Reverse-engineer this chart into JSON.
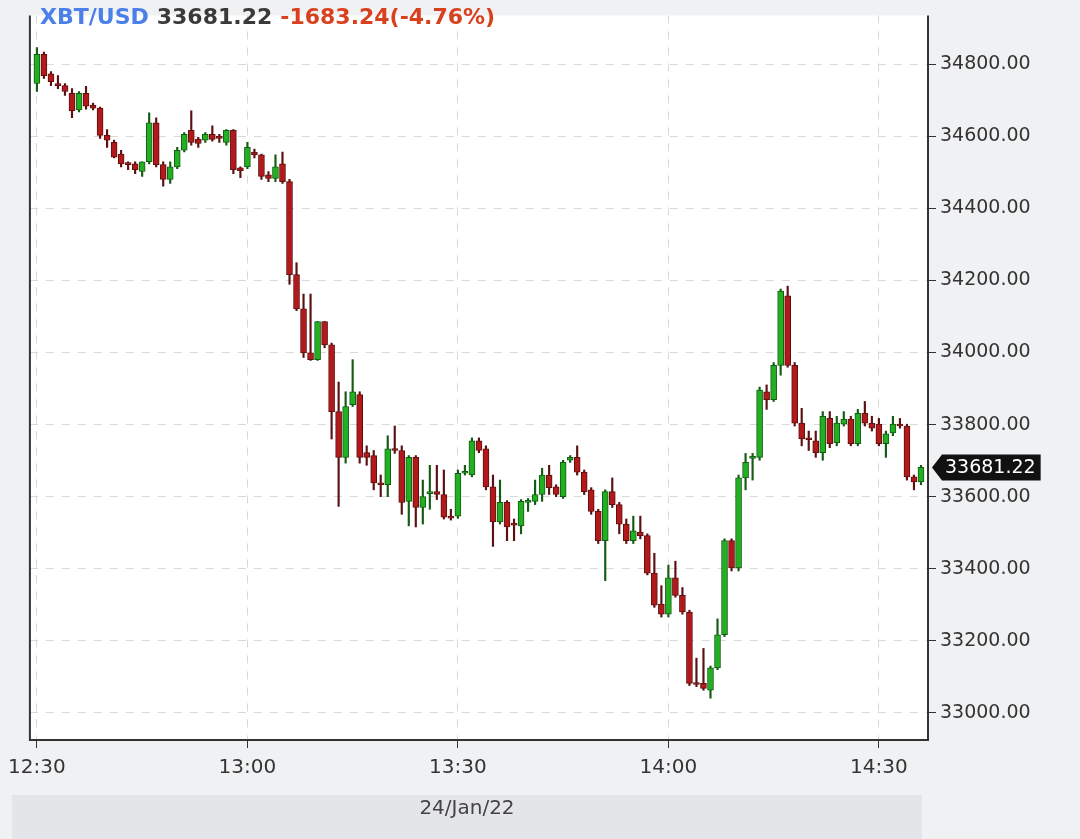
{
  "chart_data": {
    "type": "candlestick",
    "title": "XBT/USD",
    "subtitle": "33681.22",
    "annotations": [
      "-1683.24(-4.76%)",
      "33681.22"
    ],
    "xlabel": "24/Jan/22",
    "xlim": [
      "--01-24T12:29",
      "--01-24T14:37"
    ],
    "xticks": [
      {
        "value": "--01-24T12:30",
        "label": "12:30"
      },
      {
        "value": "--01-24T13:00",
        "label": "13:00"
      },
      {
        "value": "--01-24T13:30",
        "label": "13:30"
      },
      {
        "value": "--01-24T14:00",
        "label": "14:00"
      },
      {
        "value": "--01-24T14:30",
        "label": "14:30"
      }
    ],
    "ylim": [
      32925,
      34935
    ],
    "yticks": [
      {
        "value": 33000,
        "label": "33000.00"
      },
      {
        "value": 33200,
        "label": "33200.00"
      },
      {
        "value": 33400,
        "label": "33400.00"
      },
      {
        "value": 33600,
        "label": "33600.00"
      },
      {
        "value": 33800,
        "label": "33800.00"
      },
      {
        "value": 34000,
        "label": "34000.00"
      },
      {
        "value": 34200,
        "label": "34200.00"
      },
      {
        "value": 34400,
        "label": "34400.00"
      },
      {
        "value": 34600,
        "label": "34600.00"
      },
      {
        "value": 34800,
        "label": "34800.00"
      }
    ],
    "grid": true,
    "x": [
      "--01-24T12:30",
      "--01-24T12:31",
      "--01-24T12:32",
      "--01-24T12:33",
      "--01-24T12:34",
      "--01-24T12:35",
      "--01-24T12:36",
      "--01-24T12:37",
      "--01-24T12:38",
      "--01-24T12:39",
      "--01-24T12:40",
      "--01-24T12:41",
      "--01-24T12:42",
      "--01-24T12:43",
      "--01-24T12:44",
      "--01-24T12:45",
      "--01-24T12:46",
      "--01-24T12:47",
      "--01-24T12:48",
      "--01-24T12:49",
      "--01-24T12:50",
      "--01-24T12:51",
      "--01-24T12:52",
      "--01-24T12:53",
      "--01-24T12:54",
      "--01-24T12:55",
      "--01-24T12:56",
      "--01-24T12:57",
      "--01-24T12:58",
      "--01-24T12:59",
      "--01-24T13:00",
      "--01-24T13:01",
      "--01-24T13:02",
      "--01-24T13:03",
      "--01-24T13:04",
      "--01-24T13:05",
      "--01-24T13:06",
      "--01-24T13:07",
      "--01-24T13:08",
      "--01-24T13:09",
      "--01-24T13:10",
      "--01-24T13:11",
      "--01-24T13:12",
      "--01-24T13:13",
      "--01-24T13:14",
      "--01-24T13:15",
      "--01-24T13:16",
      "--01-24T13:17",
      "--01-24T13:18",
      "--01-24T13:19",
      "--01-24T13:20",
      "--01-24T13:21",
      "--01-24T13:22",
      "--01-24T13:23",
      "--01-24T13:24",
      "--01-24T13:25",
      "--01-24T13:26",
      "--01-24T13:27",
      "--01-24T13:28",
      "--01-24T13:29",
      "--01-24T13:30",
      "--01-24T13:31",
      "--01-24T13:32",
      "--01-24T13:33",
      "--01-24T13:34",
      "--01-24T13:35",
      "--01-24T13:36",
      "--01-24T13:37",
      "--01-24T13:38",
      "--01-24T13:39",
      "--01-24T13:40",
      "--01-24T13:41",
      "--01-24T13:42",
      "--01-24T13:43",
      "--01-24T13:44",
      "--01-24T13:45",
      "--01-24T13:46",
      "--01-24T13:47",
      "--01-24T13:48",
      "--01-24T13:49",
      "--01-24T13:50",
      "--01-24T13:51",
      "--01-24T13:52",
      "--01-24T13:53",
      "--01-24T13:54",
      "--01-24T13:55",
      "--01-24T13:56",
      "--01-24T13:57",
      "--01-24T13:58",
      "--01-24T13:59",
      "--01-24T14:00",
      "--01-24T14:01",
      "--01-24T14:02",
      "--01-24T14:03",
      "--01-24T14:04",
      "--01-24T14:05",
      "--01-24T14:06",
      "--01-24T14:07",
      "--01-24T14:08",
      "--01-24T14:09",
      "--01-24T14:10",
      "--01-24T14:11",
      "--01-24T14:12",
      "--01-24T14:13",
      "--01-24T14:14",
      "--01-24T14:15",
      "--01-24T14:16",
      "--01-24T14:17",
      "--01-24T14:18",
      "--01-24T14:19",
      "--01-24T14:20",
      "--01-24T14:21",
      "--01-24T14:22",
      "--01-24T14:23",
      "--01-24T14:24",
      "--01-24T14:25",
      "--01-24T14:26",
      "--01-24T14:27",
      "--01-24T14:28",
      "--01-24T14:29",
      "--01-24T14:30",
      "--01-24T14:31",
      "--01-24T14:32",
      "--01-24T14:33",
      "--01-24T14:34",
      "--01-24T14:35",
      "--01-24T14:36"
    ],
    "ohlc": [
      [
        34746,
        34846,
        34724,
        34827
      ],
      [
        34827,
        34833,
        34760,
        34768
      ],
      [
        34773,
        34779,
        34740,
        34751
      ],
      [
        34746,
        34768,
        34732,
        34740
      ],
      [
        34740,
        34746,
        34713,
        34724
      ],
      [
        34719,
        34732,
        34651,
        34670
      ],
      [
        34673,
        34724,
        34667,
        34719
      ],
      [
        34719,
        34738,
        34675,
        34683
      ],
      [
        34686,
        34692,
        34673,
        34678
      ],
      [
        34678,
        34681,
        34594,
        34602
      ],
      [
        34602,
        34618,
        34569,
        34589
      ],
      [
        34583,
        34589,
        34540,
        34542
      ],
      [
        34550,
        34561,
        34515,
        34523
      ],
      [
        34523,
        34529,
        34507,
        34521
      ],
      [
        34523,
        34529,
        34496,
        34507
      ],
      [
        34502,
        34529,
        34488,
        34529
      ],
      [
        34529,
        34665,
        34523,
        34637
      ],
      [
        34637,
        34651,
        34515,
        34521
      ],
      [
        34521,
        34529,
        34461,
        34480
      ],
      [
        34480,
        34529,
        34469,
        34515
      ],
      [
        34515,
        34569,
        34510,
        34561
      ],
      [
        34561,
        34610,
        34556,
        34605
      ],
      [
        34616,
        34670,
        34575,
        34583
      ],
      [
        34591,
        34597,
        34569,
        34580
      ],
      [
        34589,
        34610,
        34583,
        34605
      ],
      [
        34605,
        34629,
        34586,
        34591
      ],
      [
        34600,
        34605,
        34583,
        34594
      ],
      [
        34583,
        34618,
        34575,
        34616
      ],
      [
        34616,
        34618,
        34496,
        34507
      ],
      [
        34512,
        34515,
        34485,
        34504
      ],
      [
        34515,
        34583,
        34510,
        34569
      ],
      [
        34556,
        34564,
        34540,
        34548
      ],
      [
        34548,
        34550,
        34480,
        34488
      ],
      [
        34493,
        34502,
        34474,
        34483
      ],
      [
        34483,
        34548,
        34474,
        34515
      ],
      [
        34523,
        34556,
        34469,
        34474
      ],
      [
        34474,
        34480,
        34189,
        34216
      ],
      [
        34216,
        34249,
        34116,
        34121
      ],
      [
        34121,
        34162,
        33986,
        33999
      ],
      [
        33999,
        34162,
        33978,
        33980
      ],
      [
        33980,
        34086,
        33978,
        34086
      ],
      [
        34086,
        34086,
        34013,
        34021
      ],
      [
        34021,
        34026,
        33760,
        33836
      ],
      [
        33836,
        33918,
        33573,
        33709
      ],
      [
        33709,
        33891,
        33693,
        33850
      ],
      [
        33855,
        33980,
        33850,
        33891
      ],
      [
        33883,
        33891,
        33693,
        33709
      ],
      [
        33722,
        33741,
        33687,
        33709
      ],
      [
        33714,
        33728,
        33619,
        33638
      ],
      [
        33638,
        33660,
        33600,
        33633
      ],
      [
        33633,
        33769,
        33600,
        33733
      ],
      [
        33733,
        33796,
        33720,
        33728
      ],
      [
        33728,
        33741,
        33551,
        33584
      ],
      [
        33587,
        33714,
        33519,
        33709
      ],
      [
        33709,
        33714,
        33516,
        33570
      ],
      [
        33570,
        33646,
        33524,
        33600
      ],
      [
        33608,
        33687,
        33565,
        33614
      ],
      [
        33614,
        33687,
        33592,
        33606
      ],
      [
        33606,
        33674,
        33538,
        33543
      ],
      [
        33546,
        33565,
        33535,
        33540
      ],
      [
        33546,
        33674,
        33540,
        33665
      ],
      [
        33665,
        33687,
        33660,
        33668
      ],
      [
        33660,
        33763,
        33655,
        33755
      ],
      [
        33755,
        33763,
        33722,
        33728
      ],
      [
        33733,
        33741,
        33619,
        33627
      ],
      [
        33627,
        33660,
        33462,
        33530
      ],
      [
        33530,
        33646,
        33524,
        33584
      ],
      [
        33584,
        33589,
        33478,
        33516
      ],
      [
        33527,
        33538,
        33478,
        33521
      ],
      [
        33519,
        33592,
        33497,
        33587
      ],
      [
        33584,
        33595,
        33559,
        33589
      ],
      [
        33587,
        33646,
        33578,
        33606
      ],
      [
        33606,
        33679,
        33587,
        33660
      ],
      [
        33660,
        33687,
        33606,
        33625
      ],
      [
        33627,
        33633,
        33600,
        33606
      ],
      [
        33600,
        33701,
        33595,
        33695
      ],
      [
        33701,
        33714,
        33695,
        33709
      ],
      [
        33709,
        33741,
        33660,
        33668
      ],
      [
        33668,
        33674,
        33606,
        33614
      ],
      [
        33619,
        33625,
        33551,
        33559
      ],
      [
        33559,
        33565,
        33470,
        33478
      ],
      [
        33478,
        33619,
        33367,
        33614
      ],
      [
        33614,
        33652,
        33570,
        33578
      ],
      [
        33578,
        33584,
        33497,
        33524
      ],
      [
        33524,
        33538,
        33470,
        33478
      ],
      [
        33478,
        33546,
        33470,
        33505
      ],
      [
        33502,
        33546,
        33483,
        33492
      ],
      [
        33492,
        33497,
        33383,
        33388
      ],
      [
        33388,
        33443,
        33293,
        33299
      ],
      [
        33302,
        33353,
        33266,
        33274
      ],
      [
        33274,
        33410,
        33266,
        33375
      ],
      [
        33375,
        33421,
        33321,
        33326
      ],
      [
        33326,
        33348,
        33274,
        33280
      ],
      [
        33280,
        33285,
        33076,
        33082
      ],
      [
        33084,
        33152,
        33073,
        33079
      ],
      [
        33082,
        33179,
        33063,
        33068
      ],
      [
        33063,
        33130,
        33041,
        33125
      ],
      [
        33125,
        33261,
        33120,
        33217
      ],
      [
        33217,
        33483,
        33212,
        33478
      ],
      [
        33478,
        33483,
        33394,
        33402
      ],
      [
        33402,
        33660,
        33394,
        33652
      ],
      [
        33652,
        33720,
        33619,
        33695
      ],
      [
        33706,
        33720,
        33646,
        33712
      ],
      [
        33709,
        33904,
        33701,
        33896
      ],
      [
        33891,
        33910,
        33842,
        33869
      ],
      [
        33869,
        33972,
        33864,
        33964
      ],
      [
        33964,
        34176,
        33937,
        34170
      ],
      [
        34157,
        34184,
        33959,
        33964
      ],
      [
        33964,
        33972,
        33796,
        33804
      ],
      [
        33804,
        33845,
        33741,
        33760
      ],
      [
        33763,
        33782,
        33728,
        33758
      ],
      [
        33755,
        33782,
        33709,
        33722
      ],
      [
        33722,
        33836,
        33701,
        33823
      ],
      [
        33817,
        33836,
        33736,
        33747
      ],
      [
        33750,
        33823,
        33741,
        33804
      ],
      [
        33801,
        33836,
        33796,
        33815
      ],
      [
        33815,
        33823,
        33741,
        33747
      ],
      [
        33747,
        33842,
        33741,
        33831
      ],
      [
        33831,
        33864,
        33796,
        33804
      ],
      [
        33804,
        33823,
        33782,
        33790
      ],
      [
        33801,
        33817,
        33741,
        33747
      ],
      [
        33747,
        33782,
        33709,
        33774
      ],
      [
        33777,
        33823,
        33769,
        33801
      ],
      [
        33801,
        33817,
        33790,
        33796
      ],
      [
        33796,
        33801,
        33646,
        33655
      ],
      [
        33655,
        33660,
        33619,
        33641
      ],
      [
        33641,
        33687,
        33633,
        33681.22
      ]
    ]
  }
}
